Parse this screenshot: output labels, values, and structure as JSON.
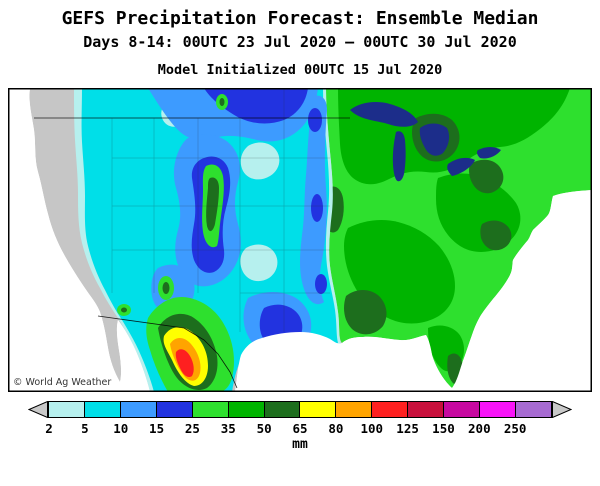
{
  "header": {
    "title": "GEFS Precipitation Forecast: Ensemble Median",
    "date_range": "Days 8-14: 00UTC 23 Jul 2020 – 00UTC 30 Jul 2020",
    "initialized": "Model Initialized 00UTC 15 Jul 2020"
  },
  "map": {
    "copyright": "© World Ag Weather"
  },
  "legend": {
    "unit": "mm",
    "ticks": [
      "2",
      "5",
      "10",
      "15",
      "25",
      "35",
      "50",
      "65",
      "80",
      "100",
      "125",
      "150",
      "200",
      "250"
    ],
    "colors": [
      "#b6f0ee",
      "#00dfe8",
      "#3d9bff",
      "#2233e0",
      "#2ee02e",
      "#00b400",
      "#1d6e1d",
      "#ffff00",
      "#ffa400",
      "#fe2020",
      "#c8103c",
      "#c709a0",
      "#f813f8",
      "#a76bd2"
    ],
    "arrow_color": "#c9c9c9"
  }
}
